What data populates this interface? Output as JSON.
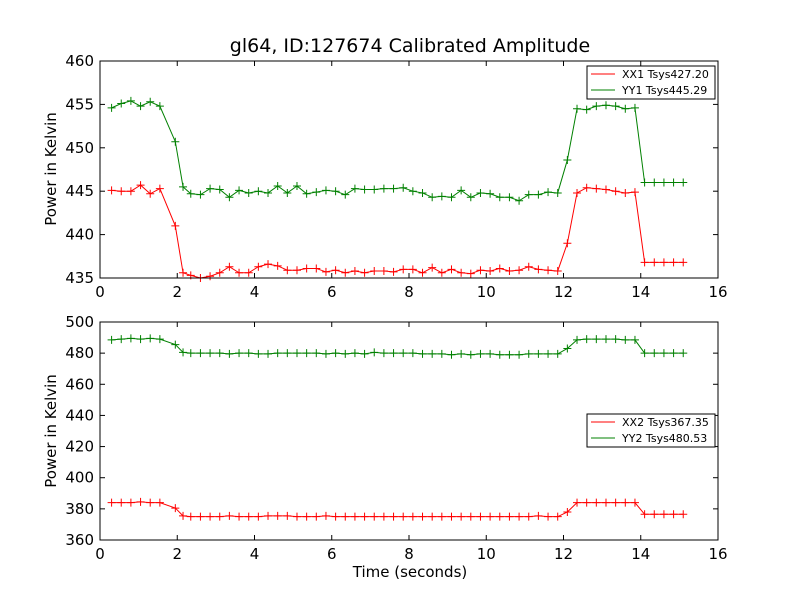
{
  "chart_data": [
    {
      "type": "line",
      "title": "gl64, ID:127674 Calibrated Amplitude",
      "xlabel": "",
      "ylabel": "Power in Kelvin",
      "xlim": [
        0,
        16
      ],
      "ylim": [
        435,
        460
      ],
      "xticks": [
        0,
        2,
        4,
        6,
        8,
        10,
        12,
        14,
        16
      ],
      "yticks": [
        435,
        440,
        445,
        450,
        455,
        460
      ],
      "legend_position": "top-right",
      "x": [
        0.3,
        0.55,
        0.8,
        1.05,
        1.3,
        1.55,
        1.95,
        2.15,
        2.35,
        2.6,
        2.85,
        3.1,
        3.35,
        3.6,
        3.85,
        4.1,
        4.35,
        4.6,
        4.85,
        5.1,
        5.35,
        5.6,
        5.85,
        6.1,
        6.35,
        6.6,
        6.85,
        7.1,
        7.35,
        7.6,
        7.85,
        8.1,
        8.35,
        8.6,
        8.85,
        9.1,
        9.35,
        9.6,
        9.85,
        10.1,
        10.35,
        10.6,
        10.85,
        11.1,
        11.35,
        11.6,
        11.85,
        12.1,
        12.35,
        12.6,
        12.85,
        13.1,
        13.35,
        13.6,
        13.85,
        14.1,
        14.35,
        14.6,
        14.85,
        15.1
      ],
      "series": [
        {
          "name": "XX1 Tsys427.20",
          "color": "#ff0000",
          "values": [
            445.1,
            445.0,
            445.0,
            445.7,
            444.7,
            445.3,
            441.0,
            435.6,
            435.3,
            435.0,
            435.2,
            435.6,
            436.3,
            435.6,
            435.6,
            436.3,
            436.6,
            436.4,
            435.9,
            435.9,
            436.1,
            436.1,
            435.7,
            435.9,
            435.6,
            435.8,
            435.6,
            435.8,
            435.8,
            435.7,
            436.0,
            436.0,
            435.6,
            436.2,
            435.6,
            436.0,
            435.6,
            435.5,
            435.9,
            435.8,
            436.1,
            435.8,
            435.9,
            436.3,
            436.0,
            435.9,
            435.8,
            439.0,
            444.8,
            445.4,
            445.3,
            445.2,
            445.0,
            444.8,
            444.9,
            436.8,
            436.8,
            436.8,
            436.8,
            436.8
          ]
        },
        {
          "name": "YY1 Tsys445.29",
          "color": "#008000",
          "values": [
            454.6,
            455.1,
            455.4,
            454.8,
            455.3,
            454.8,
            450.7,
            445.5,
            444.7,
            444.6,
            445.3,
            445.2,
            444.3,
            445.1,
            444.8,
            445.0,
            444.8,
            445.6,
            444.8,
            445.6,
            444.7,
            444.9,
            445.1,
            445.0,
            444.6,
            445.3,
            445.2,
            445.2,
            445.3,
            445.3,
            445.4,
            445.0,
            444.8,
            444.3,
            444.4,
            444.3,
            445.1,
            444.3,
            444.8,
            444.7,
            444.3,
            444.3,
            443.9,
            444.6,
            444.6,
            444.9,
            444.8,
            448.6,
            454.5,
            454.4,
            454.8,
            454.9,
            454.8,
            454.5,
            454.6,
            446.0,
            446.0,
            446.0,
            446.0,
            446.0
          ]
        }
      ]
    },
    {
      "type": "line",
      "title": "",
      "xlabel": "Time (seconds)",
      "ylabel": "Power in Kelvin",
      "xlim": [
        0,
        16
      ],
      "ylim": [
        360,
        500
      ],
      "xticks": [
        0,
        2,
        4,
        6,
        8,
        10,
        12,
        14,
        16
      ],
      "yticks": [
        360,
        380,
        400,
        420,
        440,
        460,
        480,
        500
      ],
      "legend_position": "center-right",
      "series": [
        {
          "name": "XX2 Tsys367.35",
          "color": "#ff0000"
        },
        {
          "name": "YY2 Tsys480.53",
          "color": "#008000"
        }
      ]
    }
  ]
}
